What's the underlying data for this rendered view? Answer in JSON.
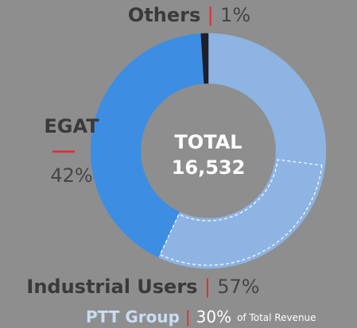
{
  "chart_data": {
    "type": "donut",
    "center_title": "TOTAL",
    "center_value_label": "16,532",
    "separator": "|",
    "categories": [
      "Industrial Users",
      "EGAT",
      "Others"
    ],
    "values": [
      57,
      42,
      1
    ],
    "value_labels": [
      "57%",
      "42%",
      "1%"
    ],
    "colors": [
      "#8db4e3",
      "#3d8ee2",
      "#1f1f2b"
    ],
    "sub_segment": {
      "name": "PTT Group",
      "parent": "Industrial Users",
      "value": 30,
      "value_label": "30%",
      "note": "of Total Revenue"
    }
  }
}
